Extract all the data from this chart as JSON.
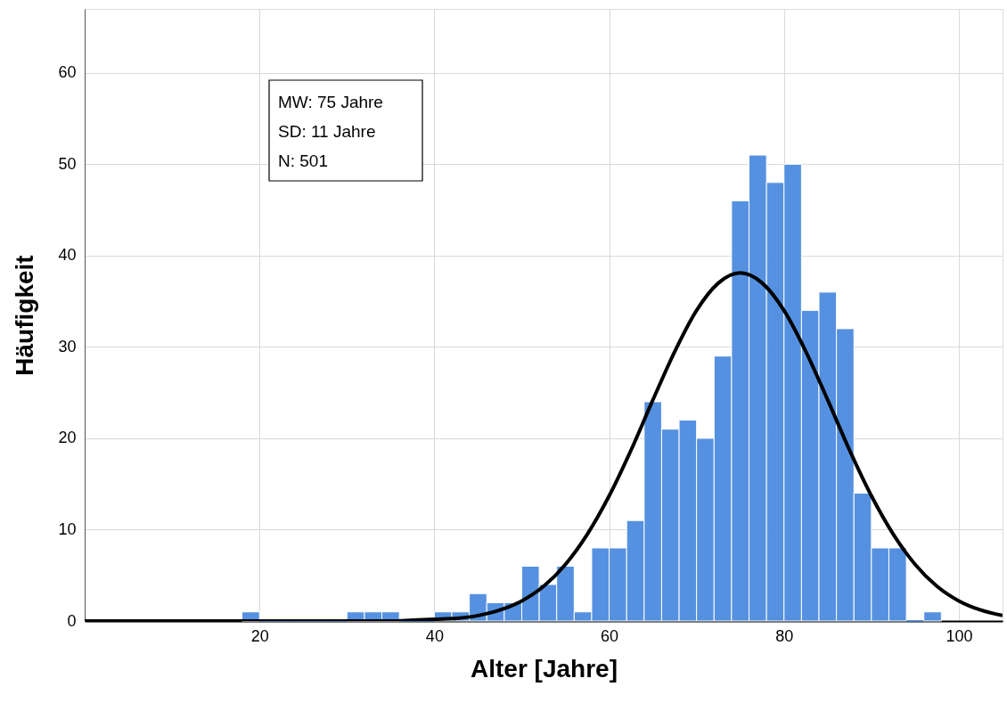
{
  "chart_data": {
    "type": "histogram",
    "xlabel": "Alter [Jahre]",
    "ylabel": "Häufigkeit",
    "bins": [
      18,
      20,
      22,
      24,
      26,
      28,
      30,
      32,
      34,
      36,
      38,
      40,
      42,
      44,
      46,
      48,
      50,
      52,
      54,
      56,
      58,
      60,
      62,
      64,
      66,
      68,
      70,
      72,
      74,
      76,
      78,
      80,
      82,
      84,
      86,
      88,
      90,
      92,
      94,
      96,
      98
    ],
    "values": [
      1,
      0,
      0,
      0,
      0,
      0,
      1,
      1,
      1,
      0,
      0,
      1,
      1,
      3,
      2,
      2,
      6,
      4,
      6,
      1,
      8,
      8,
      11,
      24,
      21,
      22,
      20,
      29,
      46,
      51,
      48,
      50,
      34,
      36,
      32,
      14,
      8,
      8,
      0,
      1
    ],
    "color": "#5591e0",
    "series": [
      {
        "type": "line",
        "color": "#000000",
        "x": [
          0,
          20,
          30,
          35,
          37.5,
          40,
          42.5,
          45,
          47.5,
          50,
          52.5,
          55,
          57.5,
          60,
          62.5,
          65,
          67.5,
          70,
          72.5,
          75,
          77.5,
          80,
          82.5,
          85,
          87.5,
          90,
          92.5,
          95,
          97.5,
          100,
          102.5,
          105
        ],
        "values": [
          0,
          0,
          0,
          0,
          0.1,
          0.2,
          0.3,
          0.6,
          1.2,
          2.2,
          3.8,
          6.2,
          9.5,
          13.7,
          18.7,
          24.2,
          29.5,
          34.0,
          37.0,
          38.1,
          37.0,
          34.0,
          29.5,
          24.2,
          18.7,
          13.7,
          9.5,
          6.2,
          3.8,
          2.2,
          1.2,
          0.6
        ]
      }
    ],
    "annotations": [
      "MW: 75 Jahre",
      "SD: 11 Jahre",
      "N: 501"
    ],
    "xlim": [
      0,
      105
    ],
    "xticks": [
      20,
      40,
      60,
      80,
      100
    ],
    "ylim": [
      0,
      67
    ],
    "yticks": [
      0,
      10,
      20,
      30,
      40,
      50,
      60
    ],
    "grid": true
  }
}
